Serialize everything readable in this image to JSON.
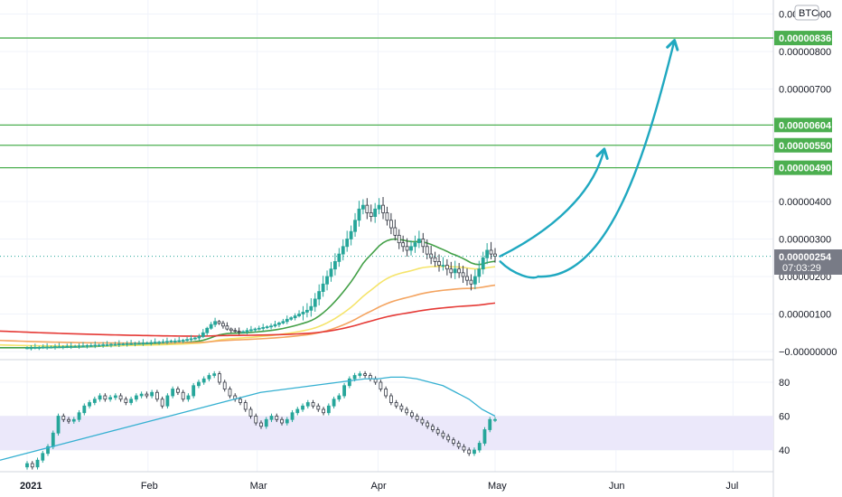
{
  "colors": {
    "up": "#26a69a",
    "level_line": "#4caf50",
    "ema_green": "#43a047",
    "ema_yellow": "#f5e46b",
    "ema_orange": "#f4a460",
    "ema_red": "#e53935",
    "arrow": "#1fa8c0",
    "rsi_band": "#ebe8fa",
    "rsi_ma": "#35b0d1"
  },
  "header": {
    "currency_badge": "BTC"
  },
  "price_axis": {
    "ticks": [
      {
        "label": "0.00000900",
        "value": 9.0
      },
      {
        "label": "0.00000800",
        "value": 8.0
      },
      {
        "label": "0.00000700",
        "value": 7.0
      },
      {
        "label": "0.00000400",
        "value": 4.0
      },
      {
        "label": "0.00000300",
        "value": 3.0
      },
      {
        "label": "0.00000200",
        "value": 2.0
      },
      {
        "label": "0.00000100",
        "value": 1.0
      },
      {
        "label": "−0.00000000",
        "value": 0.0
      }
    ]
  },
  "levels": [
    {
      "label": "0.00000836",
      "value": 8.36
    },
    {
      "label": "0.00000604",
      "value": 6.04
    },
    {
      "label": "0.00000550",
      "value": 5.5
    },
    {
      "label": "0.00000490",
      "value": 4.9
    }
  ],
  "current_price": {
    "label": "0.00000254",
    "value": 2.54,
    "countdown": "07:03:29"
  },
  "rsi_axis": {
    "ticks": [
      {
        "label": "80",
        "value": 80
      },
      {
        "label": "60",
        "value": 60
      },
      {
        "label": "40",
        "value": 40
      }
    ]
  },
  "time_axis": {
    "ticks": [
      {
        "label": "2021",
        "bold": true
      },
      {
        "label": "Feb",
        "bold": false
      },
      {
        "label": "Mar",
        "bold": false
      },
      {
        "label": "Apr",
        "bold": false
      },
      {
        "label": "May",
        "bold": false
      },
      {
        "label": "Jun",
        "bold": false
      },
      {
        "label": "Jul",
        "bold": false
      }
    ]
  },
  "chart_data": {
    "type": "candlestick",
    "interval": "1D",
    "x_range": [
      "2021-01-01",
      "2021-07-15"
    ],
    "price_ylim": [
      0.0,
      9.3
    ],
    "price_unit_multiplier": "1e-6 BTC",
    "rsi_ylim": [
      30,
      90
    ],
    "rsi_band": [
      40,
      60
    ],
    "close_series": [
      0.1,
      0.1,
      0.11,
      0.11,
      0.12,
      0.12,
      0.12,
      0.13,
      0.13,
      0.13,
      0.14,
      0.14,
      0.14,
      0.15,
      0.15,
      0.16,
      0.16,
      0.17,
      0.17,
      0.18,
      0.18,
      0.19,
      0.19,
      0.2,
      0.2,
      0.21,
      0.21,
      0.22,
      0.22,
      0.23,
      0.23,
      0.24,
      0.25,
      0.25,
      0.26,
      0.27,
      0.28,
      0.28,
      0.29,
      0.3,
      0.32,
      0.34,
      0.36,
      0.4,
      0.5,
      0.62,
      0.72,
      0.8,
      0.75,
      0.68,
      0.6,
      0.56,
      0.54,
      0.52,
      0.53,
      0.56,
      0.58,
      0.6,
      0.62,
      0.64,
      0.66,
      0.68,
      0.72,
      0.76,
      0.8,
      0.86,
      0.9,
      0.95,
      1.0,
      1.05,
      1.1,
      1.2,
      1.4,
      1.6,
      1.8,
      2.0,
      2.2,
      2.4,
      2.6,
      2.8,
      3.0,
      3.2,
      3.5,
      3.8,
      3.9,
      3.7,
      3.6,
      3.8,
      3.9,
      3.7,
      3.5,
      3.3,
      3.1,
      2.9,
      2.8,
      2.7,
      2.8,
      2.9,
      3.0,
      2.8,
      2.6,
      2.5,
      2.4,
      2.3,
      2.3,
      2.2,
      2.1,
      2.2,
      2.1,
      2.0,
      1.9,
      1.8,
      2.0,
      2.2,
      2.5,
      2.7,
      2.6,
      2.54
    ],
    "ema_series": [
      {
        "color_key": "ema_green",
        "period": 20
      },
      {
        "color_key": "ema_yellow",
        "period": 50
      },
      {
        "color_key": "ema_orange",
        "period": 100
      },
      {
        "color_key": "ema_red",
        "period": 200
      }
    ],
    "projection_arrows": [
      {
        "from": [
          "2021-04-30",
          2.54
        ],
        "to": [
          "2021-05-29",
          5.4
        ]
      },
      {
        "from": [
          "2021-04-30",
          2.4
        ],
        "via": [
          "2021-05-12",
          2.0
        ],
        "to": [
          "2021-06-16",
          8.3
        ]
      }
    ],
    "rsi": {
      "values": [
        32,
        30,
        34,
        38,
        42,
        50,
        60,
        58,
        57,
        58,
        62,
        66,
        68,
        70,
        72,
        70,
        71,
        72,
        70,
        68,
        70,
        72,
        73,
        72,
        74,
        70,
        66,
        72,
        76,
        74,
        70,
        72,
        78,
        80,
        82,
        84,
        85,
        80,
        76,
        72,
        70,
        68,
        64,
        60,
        56,
        54,
        58,
        60,
        58,
        56,
        58,
        62,
        64,
        66,
        68,
        66,
        64,
        62,
        66,
        70,
        72,
        78,
        82,
        84,
        85,
        84,
        82,
        80,
        76,
        72,
        68,
        66,
        64,
        62,
        60,
        58,
        56,
        54,
        52,
        50,
        48,
        46,
        44,
        42,
        40,
        38,
        40,
        44,
        52,
        58,
        58
      ],
      "ma_values": [
        34,
        36,
        38,
        40,
        42,
        44,
        46,
        48,
        50,
        52,
        54,
        56,
        58,
        60,
        62,
        64,
        66,
        68,
        70,
        72,
        74,
        75,
        76,
        77,
        78,
        79,
        80,
        81,
        82,
        82,
        83,
        83,
        82,
        80,
        78,
        74,
        70,
        64,
        60
      ]
    }
  }
}
